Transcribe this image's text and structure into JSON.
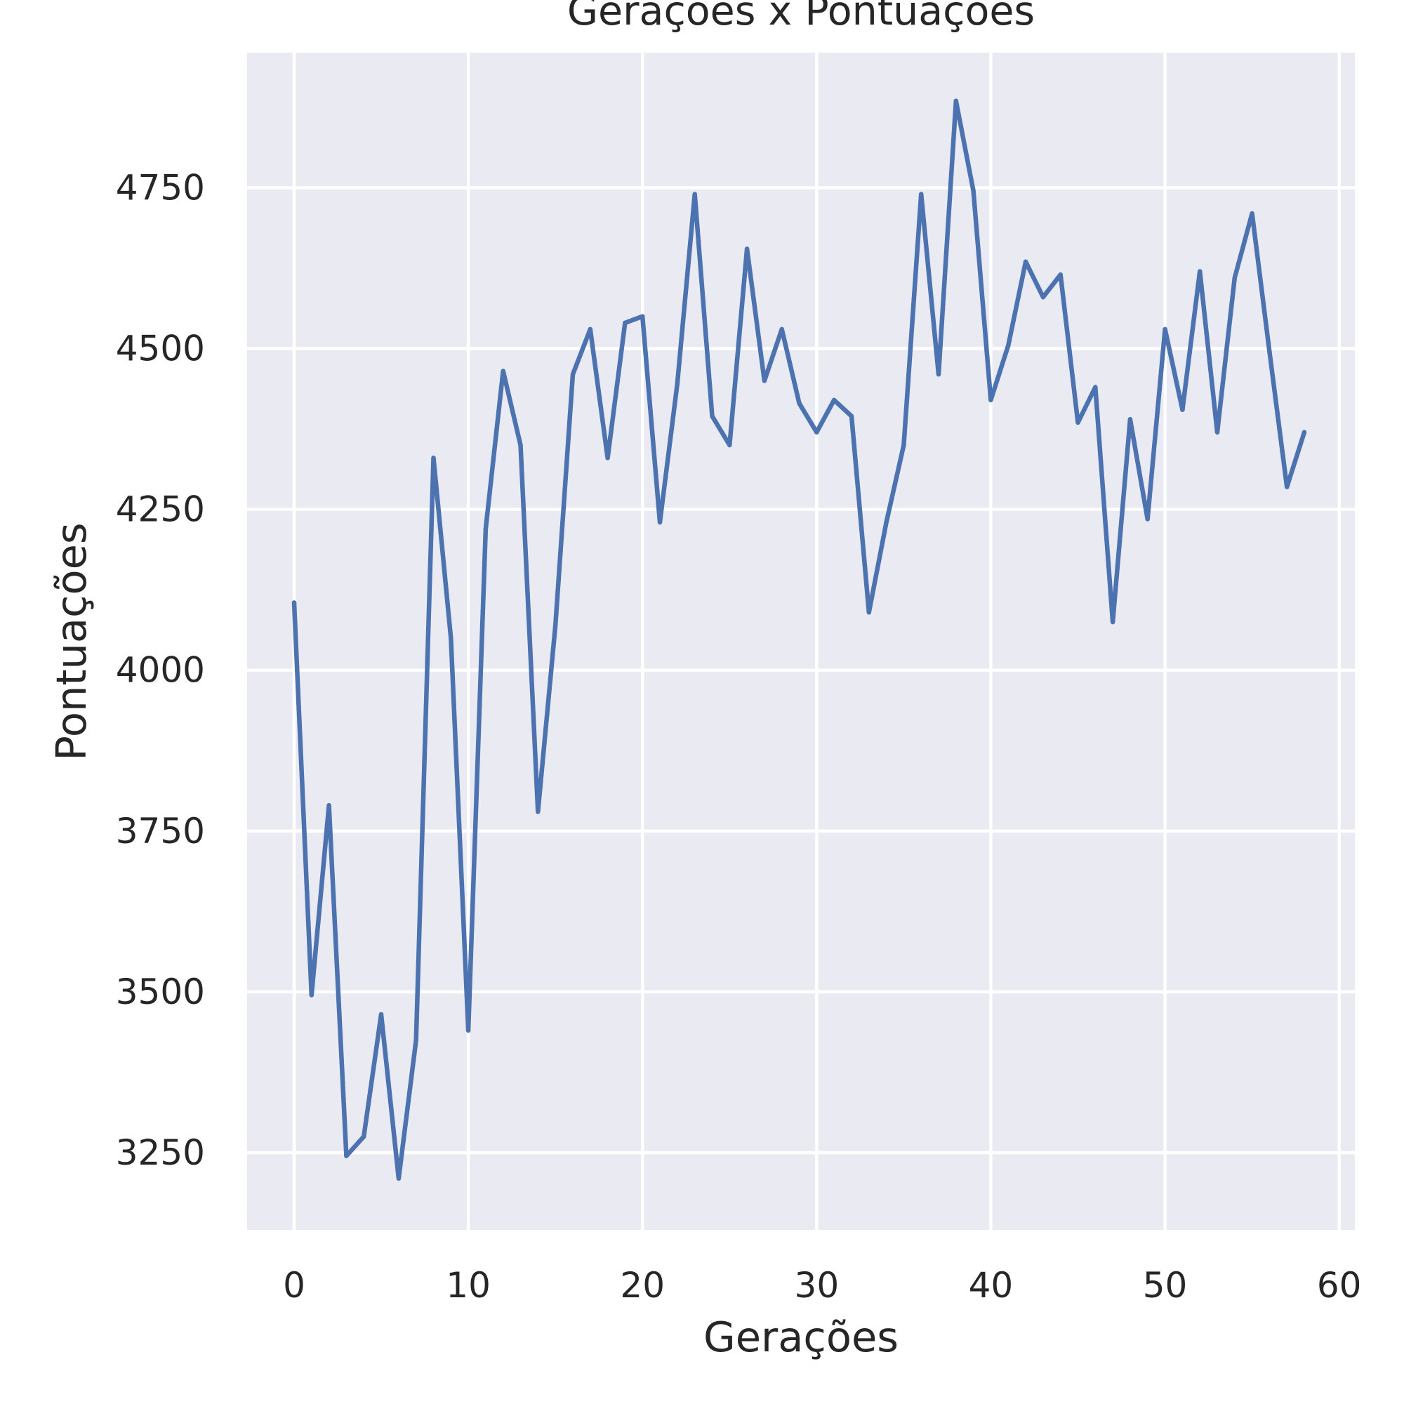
{
  "chart_data": {
    "type": "line",
    "title": "Gerações x Pontuações",
    "xlabel": "Gerações",
    "ylabel": "Pontuações",
    "xlim": [
      -2.7,
      60.9
    ],
    "ylim": [
      3130,
      4960
    ],
    "xticks": [
      0,
      10,
      20,
      30,
      40,
      50,
      60
    ],
    "yticks": [
      3250,
      3500,
      3750,
      4000,
      4250,
      4500,
      4750
    ],
    "grid": true,
    "series": [
      {
        "color": "#4c72b0",
        "x": [
          0,
          1,
          2,
          3,
          4,
          5,
          6,
          7,
          8,
          9,
          10,
          11,
          12,
          13,
          14,
          15,
          16,
          17,
          18,
          19,
          20,
          21,
          22,
          23,
          24,
          25,
          26,
          27,
          28,
          29,
          30,
          31,
          32,
          33,
          34,
          35,
          36,
          37,
          38,
          39,
          40,
          41,
          42,
          43,
          44,
          45,
          46,
          47,
          48,
          49,
          50,
          51,
          52,
          53,
          54,
          55,
          56,
          57,
          58
        ],
        "values": [
          4105,
          3495,
          3790,
          3245,
          3275,
          3465,
          3210,
          3425,
          4330,
          4050,
          3440,
          4220,
          4465,
          4350,
          3780,
          4070,
          4460,
          4530,
          4330,
          4540,
          4550,
          4230,
          4445,
          4740,
          4395,
          4350,
          4655,
          4450,
          4530,
          4415,
          4370,
          4420,
          4395,
          4090,
          4230,
          4350,
          4740,
          4460,
          4885,
          4745,
          4420,
          4505,
          4635,
          4580,
          4615,
          4385,
          4440,
          4075,
          4390,
          4235,
          4530,
          4405,
          4620,
          4370,
          4610,
          4710,
          4495,
          4285,
          4370
        ]
      }
    ]
  }
}
